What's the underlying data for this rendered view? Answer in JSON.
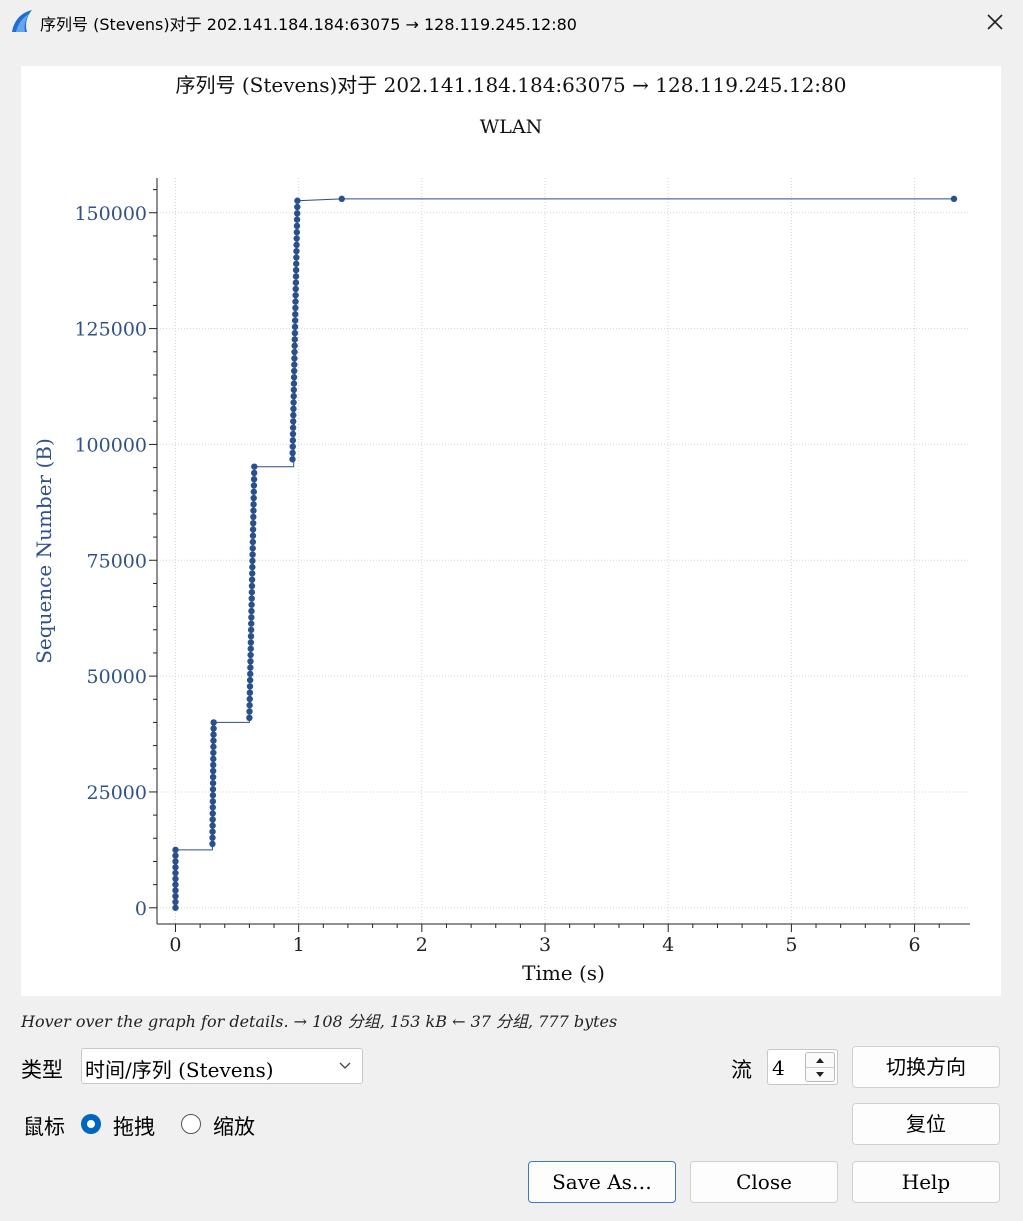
{
  "window": {
    "title": "序列号 (Stevens)对于 202.141.184.184:63075 → 128.119.245.12:80"
  },
  "chart_data": {
    "type": "scatter",
    "title": "序列号 (Stevens)对于 202.141.184.184:63075 → 128.119.245.12:80",
    "subtitle": "WLAN",
    "xlabel": "Time (s)",
    "ylabel": "Sequence Number (B)",
    "xlim": [
      -0.15,
      6.45
    ],
    "ylim": [
      -3500,
      157500
    ],
    "xticks": [
      0,
      1,
      2,
      3,
      4,
      5,
      6
    ],
    "yticks": [
      0,
      25000,
      50000,
      75000,
      100000,
      125000,
      150000
    ],
    "grid": true,
    "color": "#2a4f8a",
    "step_line": [
      [
        0,
        12500
      ],
      [
        0.3,
        12500
      ],
      [
        0.3,
        40000
      ],
      [
        0.6,
        40000
      ],
      [
        0.64,
        95200
      ],
      [
        0.96,
        95200
      ],
      [
        0.99,
        152600
      ],
      [
        1.35,
        153000
      ],
      [
        6.32,
        153000
      ]
    ],
    "clusters": [
      {
        "x0": 0.0,
        "x1": 0.0,
        "y0": 0,
        "y1": 12500,
        "n": 11
      },
      {
        "x0": 0.3,
        "x1": 0.31,
        "y0": 13800,
        "y1": 40000,
        "n": 21
      },
      {
        "x0": 0.6,
        "x1": 0.64,
        "y0": 41000,
        "y1": 95200,
        "n": 41
      },
      {
        "x0": 0.95,
        "x1": 0.99,
        "y0": 96800,
        "y1": 152600,
        "n": 42
      }
    ],
    "points": [
      [
        1.35,
        153000
      ],
      [
        6.32,
        153000
      ]
    ]
  },
  "status_text": "Hover over the graph for details. → 108 分组, 153 kB ← 37 分组, 777 bytes",
  "controls": {
    "type_label": "类型",
    "type_value": "时间/序列 (Stevens)",
    "stream_label": "流",
    "stream_value": "4",
    "switch_direction": "切换方向",
    "mouse_label": "鼠标",
    "drag_label": "拖拽",
    "zoom_label": "缩放",
    "reset": "复位",
    "save_as": "Save As…",
    "close": "Close",
    "help": "Help"
  }
}
